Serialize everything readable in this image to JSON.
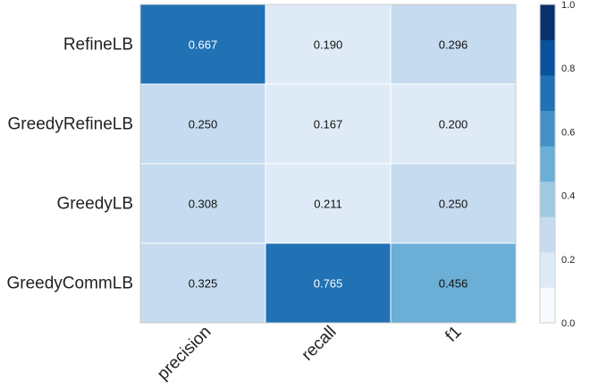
{
  "chart_data": {
    "type": "heatmap",
    "rows": [
      "RefineLB",
      "GreedyRefineLB",
      "GreedyLB",
      "GreedyCommLB"
    ],
    "columns": [
      "precision",
      "recall",
      "f1"
    ],
    "values": [
      [
        0.667,
        0.19,
        0.296
      ],
      [
        0.25,
        0.167,
        0.2
      ],
      [
        0.308,
        0.211,
        0.25
      ],
      [
        0.325,
        0.765,
        0.456
      ]
    ],
    "cell_labels": [
      [
        "0.667",
        "0.190",
        "0.296"
      ],
      [
        "0.250",
        "0.167",
        "0.200"
      ],
      [
        "0.308",
        "0.211",
        "0.250"
      ],
      [
        "0.325",
        "0.765",
        "0.456"
      ]
    ],
    "colorbar": {
      "range": [
        0.0,
        1.0
      ],
      "ticks": [
        "0.0",
        "0.2",
        "0.4",
        "0.6",
        "0.8",
        "1.0"
      ],
      "bins": 9,
      "colors": [
        "#f7fbff",
        "#deebf7",
        "#c6dbef",
        "#9ecae1",
        "#6baed6",
        "#4292c6",
        "#2171b5",
        "#08519c",
        "#08306b"
      ]
    },
    "title": "",
    "xlabel": "",
    "ylabel": "",
    "grid": false
  }
}
